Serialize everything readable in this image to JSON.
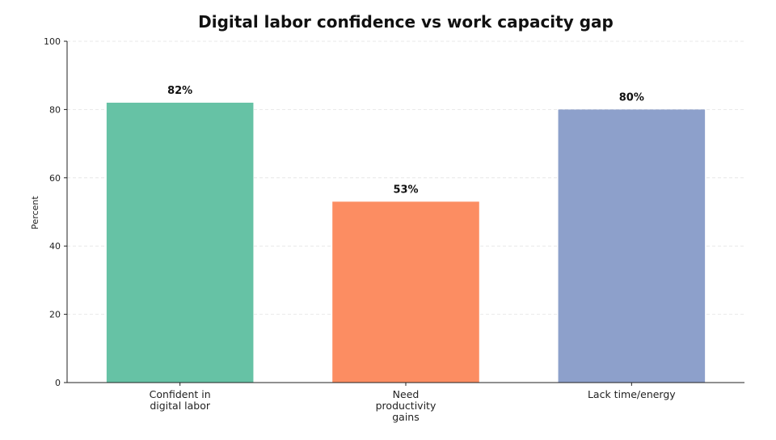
{
  "chart_data": {
    "type": "bar",
    "title": "Digital labor confidence vs work capacity gap",
    "xlabel": "",
    "ylabel": "Percent",
    "ylim": [
      0,
      100
    ],
    "yticks": [
      0,
      20,
      40,
      60,
      80,
      100
    ],
    "grid": true,
    "categories": [
      [
        "Confident in",
        "digital labor"
      ],
      [
        "Need",
        "productivity",
        "gains"
      ],
      [
        "Lack time/energy"
      ]
    ],
    "values": [
      82,
      53,
      80
    ],
    "data_labels": [
      "82%",
      "53%",
      "80%"
    ],
    "colors": [
      "#66c2a5",
      "#fc8d62",
      "#8da0cb"
    ]
  }
}
